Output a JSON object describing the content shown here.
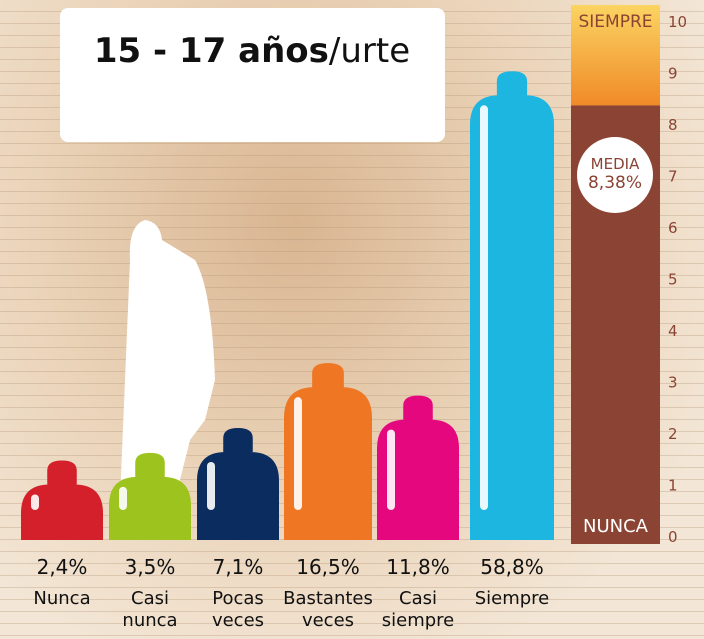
{
  "chart_data": [
    {
      "type": "bar",
      "title": [
        "15 - 17 años",
        "/urte"
      ],
      "categories": [
        "Nunca",
        "Casi nunca",
        "Pocas veces",
        "Bastantes veces",
        "Casi siempre",
        "Siempre"
      ],
      "values": [
        2.4,
        3.5,
        7.1,
        16.5,
        11.8,
        58.8
      ],
      "value_labels": [
        "2,4%",
        "3,5%",
        "7,1%",
        "16,5%",
        "11,8%",
        "58,8%"
      ],
      "colors": [
        "#d3202a",
        "#9dc31f",
        "#0b2c5f",
        "#ef7622",
        "#e5077e",
        "#1cb6e1"
      ]
    },
    {
      "type": "gauge",
      "value": 8.38,
      "value_label": "8,38%",
      "label": "MEDIA",
      "top_label": "SIEMPRE",
      "bottom_label": "NUNCA",
      "ylim": [
        0,
        10
      ],
      "yticks": [
        0,
        1,
        2,
        3,
        4,
        5,
        6,
        7,
        8,
        9,
        10
      ],
      "color": "#8b4334"
    }
  ]
}
